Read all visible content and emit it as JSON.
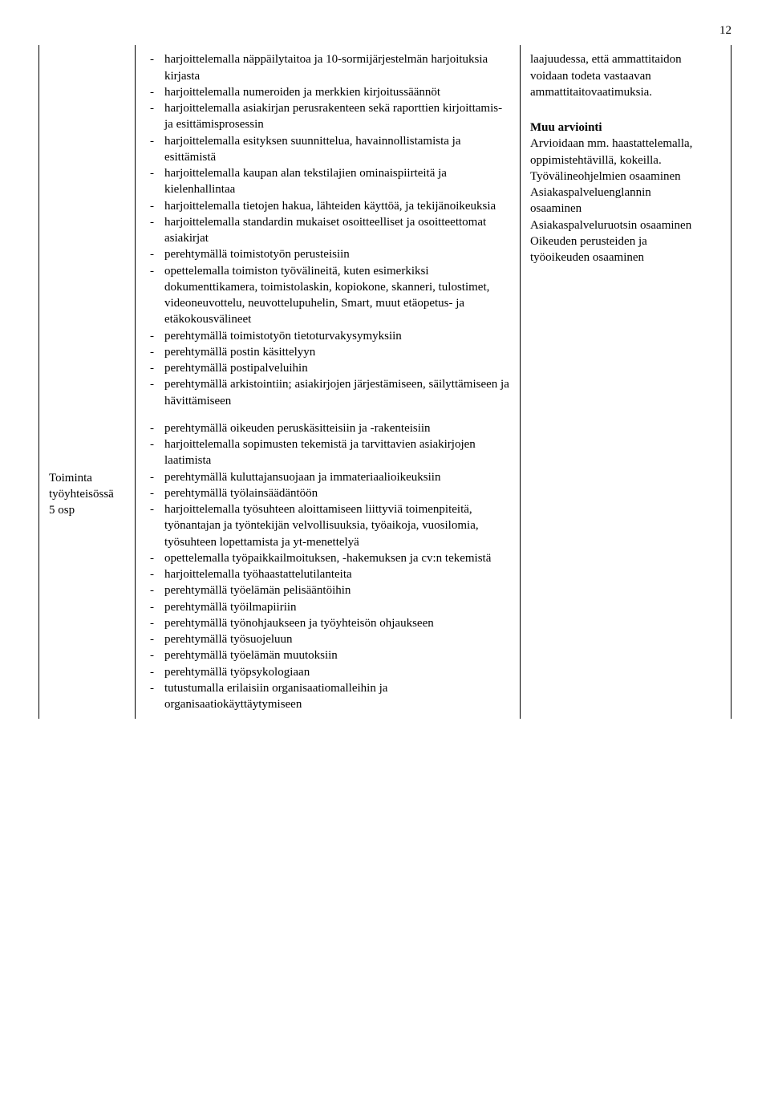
{
  "page_number": "12",
  "left": {
    "title_line1": "Toiminta",
    "title_line2": "työyhteisössä",
    "title_line3": "5 osp"
  },
  "center": {
    "block1": [
      "harjoittelemalla näppäilytaitoa ja 10-sormijärjestelmän harjoituksia kirjasta",
      "harjoittelemalla numeroiden ja merkkien kirjoitussäännöt",
      "harjoittelemalla asiakirjan perusrakenteen sekä raporttien kirjoittamis- ja esittämisprosessin",
      "harjoittelemalla esityksen suunnittelua, havainnollistamista ja esittämistä",
      "harjoittelemalla kaupan alan tekstilajien ominaispiirteitä ja kielenhallintaa",
      "harjoittelemalla tietojen hakua, lähteiden käyttöä, ja tekijänoikeuksia",
      "harjoittelemalla standardin mukaiset osoitteelliset ja osoitteettomat asiakirjat",
      "perehtymällä toimistotyön perusteisiin",
      "opettelemalla toimiston työvälineitä, kuten esimerkiksi dokumenttikamera, toimistolaskin, kopiokone, skanneri, tulostimet, videoneuvottelu, neuvottelupuhelin, Smart, muut etäopetus- ja etäkokousvälineet",
      "perehtymällä toimistotyön tietoturvakysymyksiin",
      "perehtymällä postin käsittelyyn",
      "perehtymällä postipalveluihin",
      "perehtymällä arkistointiin; asiakirjojen järjestämiseen, säilyttämiseen ja hävittämiseen"
    ],
    "block2": [
      "perehtymällä oikeuden peruskäsitteisiin ja -rakenteisiin",
      "harjoittelemalla sopimusten tekemistä ja tarvittavien asiakirjojen laatimista",
      "perehtymällä kuluttajansuojaan ja immateriaalioikeuksiin",
      "perehtymällä työlainsäädäntöön",
      "harjoittelemalla työsuhteen aloittamiseen liittyviä toimenpiteitä, työnantajan ja työntekijän velvollisuuksia, työaikoja, vuosilomia, työsuhteen lopettamista ja yt-menettelyä",
      "opettelemalla työpaikkailmoituksen, -hakemuksen ja cv:n tekemistä",
      "harjoittelemalla työhaastattelutilanteita",
      "perehtymällä työelämän pelisääntöihin",
      "perehtymällä työilmapiiriin",
      "perehtymällä työnohjaukseen ja työyhteisön ohjaukseen",
      "perehtymällä työsuojeluun",
      "perehtymällä työelämän muutoksiin",
      "perehtymällä työpsykologiaan",
      "tutustumalla erilaisiin organisaatiomalleihin ja organisaatiokäyttäytymiseen"
    ]
  },
  "right": {
    "intro": "laajuudessa, että ammattitaidon voidaan todeta vastaavan ammattitaitovaatimuksia.",
    "heading": "Muu arviointi",
    "p1": "Arvioidaan mm. haastattelemalla, oppimistehtävillä, kokeilla.",
    "p2": "Työvälineohjelmien osaaminen",
    "p3": "Asiakaspalveluenglannin osaaminen",
    "p4": "Asiakaspalveluruotsin osaaminen",
    "p5": "Oikeuden perusteiden ja työoikeuden osaaminen"
  }
}
